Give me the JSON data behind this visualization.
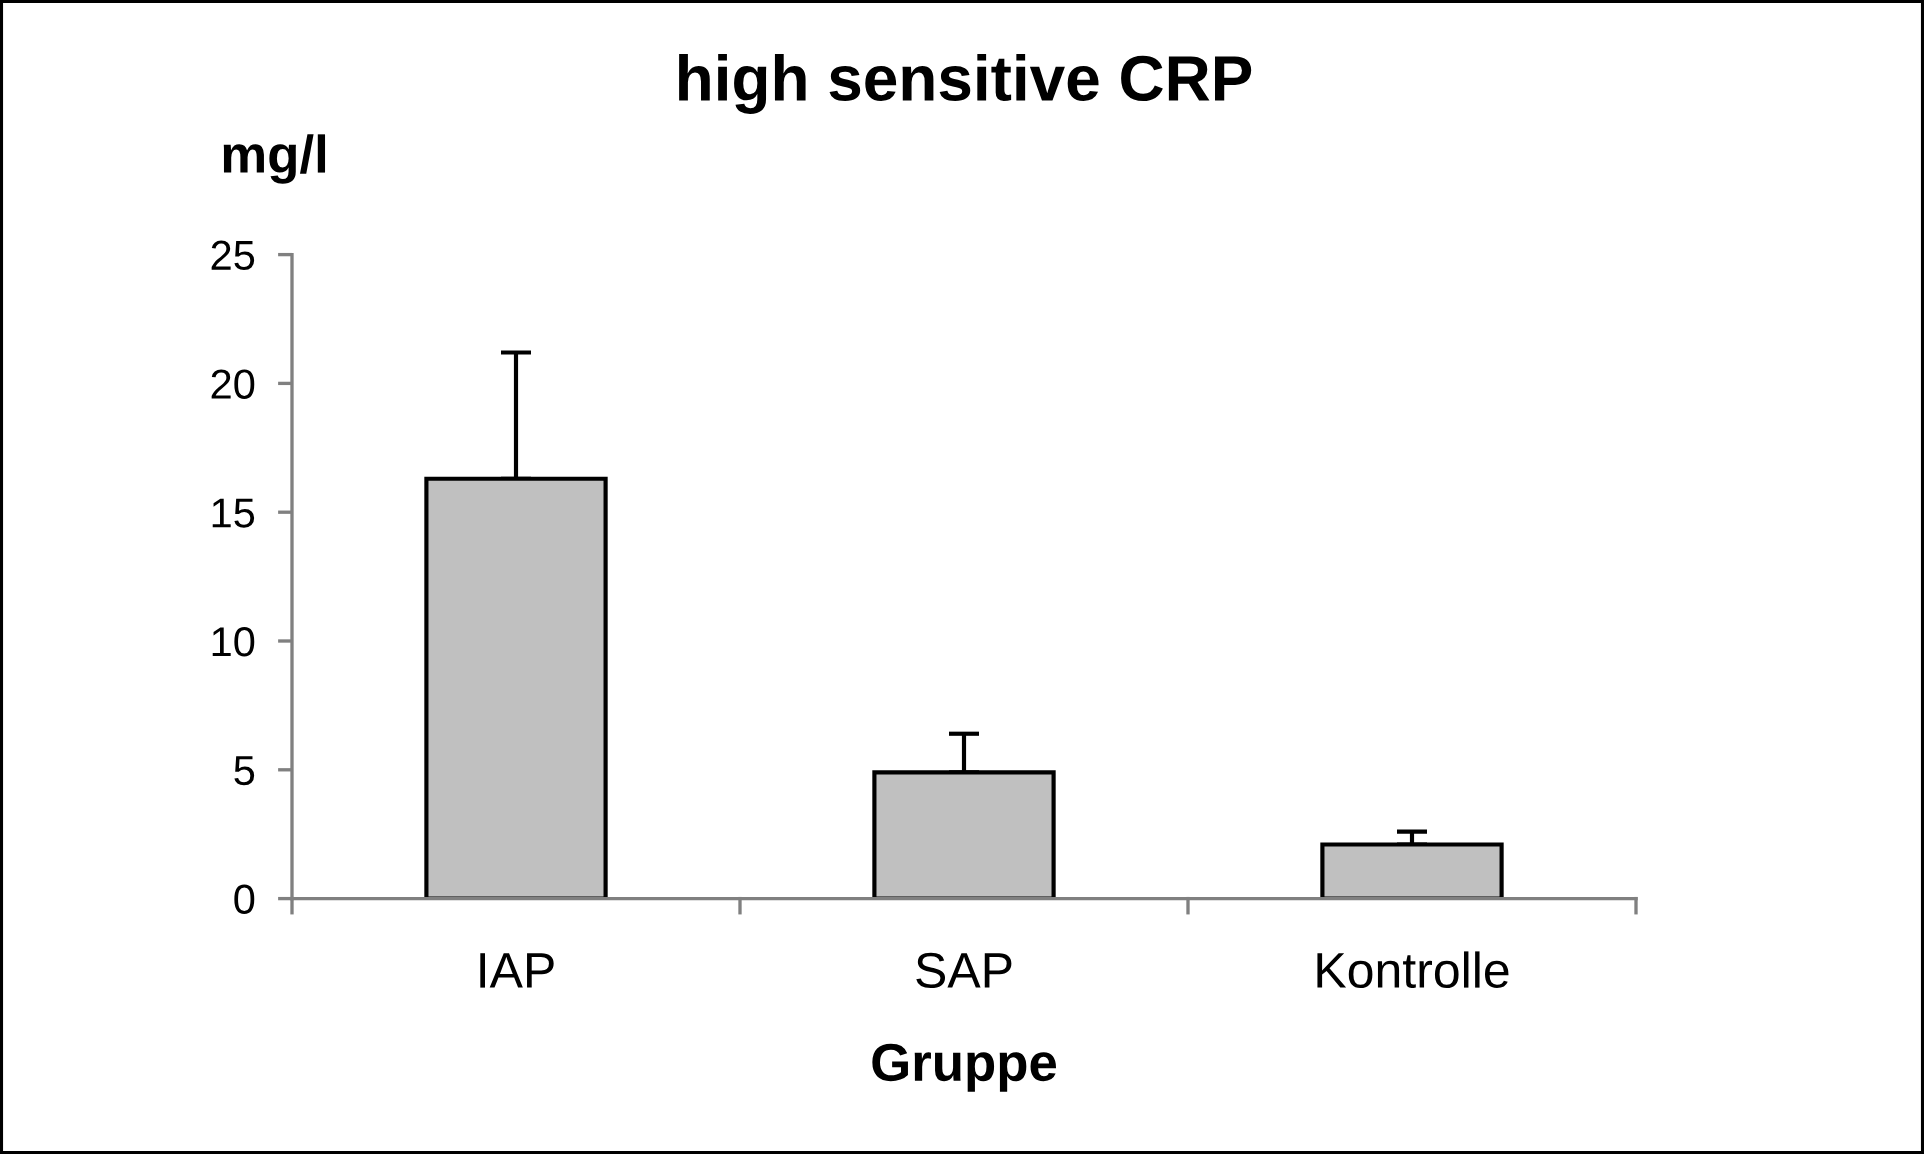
{
  "chart_data": {
    "type": "bar",
    "title": "high sensitive CRP",
    "xlabel": "Gruppe",
    "ylabel": "mg/l",
    "categories": [
      "IAP",
      "SAP",
      "Kontrolle"
    ],
    "values": [
      16.3,
      4.9,
      2.1
    ],
    "errors": [
      [
        16.3,
        21.2
      ],
      [
        4.9,
        6.4
      ],
      [
        2.1,
        2.6
      ]
    ],
    "color": "#c0c0c0",
    "ylim": [
      0,
      25
    ],
    "yticks": [
      0,
      5,
      10,
      15,
      20,
      25
    ]
  }
}
